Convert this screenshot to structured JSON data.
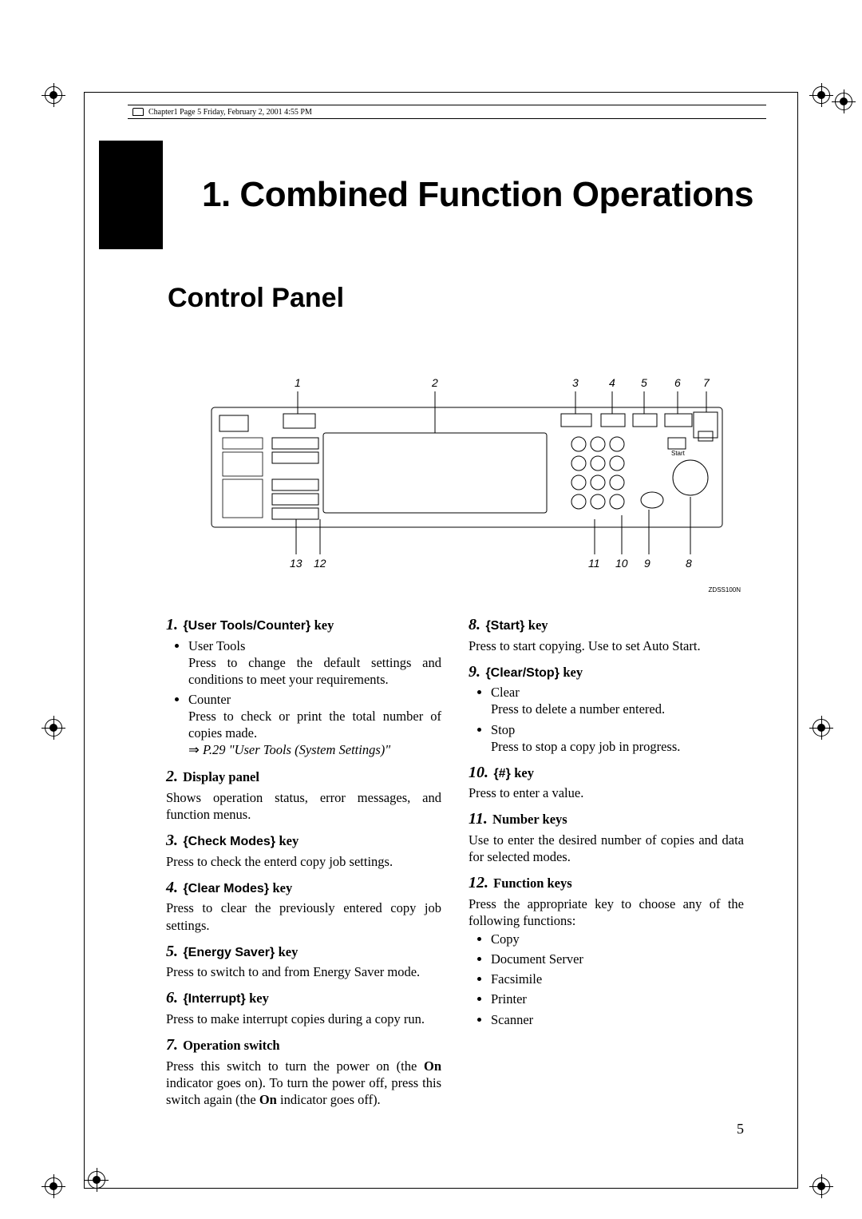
{
  "meta": {
    "header_line": "Chapter1  Page 5  Friday, February 2, 2001  4:55 PM"
  },
  "chapter": {
    "title": "1. Combined Function Operations"
  },
  "section": {
    "title": "Control Panel"
  },
  "diagram": {
    "top_labels": [
      "1",
      "2",
      "3",
      "4",
      "5",
      "6",
      "7"
    ],
    "bottom_labels_left": [
      "13",
      "12"
    ],
    "bottom_labels_right": [
      "11",
      "10",
      "9",
      "8"
    ],
    "code": "ZDSS100N"
  },
  "items": [
    {
      "n": "1.",
      "key": "User Tools/Counter",
      "is_key": true,
      "sub": [
        {
          "label": "User Tools",
          "text": "Press to change the default settings and conditions to meet your requirements."
        },
        {
          "label": "Counter",
          "text": "Press to check or print the total number of copies made.",
          "ref": "⇒ P.29 \"User Tools (System Settings)\""
        }
      ]
    },
    {
      "n": "2.",
      "plain": "Display panel",
      "text": "Shows operation status, error messages, and function menus."
    },
    {
      "n": "3.",
      "key": "Check Modes",
      "is_key": true,
      "text": "Press to check the enterd copy job settings."
    },
    {
      "n": "4.",
      "key": "Clear Modes",
      "is_key": true,
      "text": "Press to clear the previously entered copy job settings."
    },
    {
      "n": "5.",
      "key": "Energy Saver",
      "is_key": true,
      "text": "Press to switch to and from Energy Saver mode."
    },
    {
      "n": "6.",
      "key": "Interrupt",
      "is_key": true,
      "text": "Press to make interrupt copies during a copy run."
    },
    {
      "n": "7.",
      "plain": "Operation switch",
      "text_html": "Press this switch to turn the power on (the <b>On</b> indicator goes on). To turn the power off, press this switch again (the <b>On</b> indicator goes off)."
    },
    {
      "n": "8.",
      "key": "Start",
      "is_key": true,
      "text": "Press to start copying. Use to set Auto Start."
    },
    {
      "n": "9.",
      "key": "Clear/Stop",
      "is_key": true,
      "sub": [
        {
          "label": "Clear",
          "text": "Press to delete a number entered."
        },
        {
          "label": "Stop",
          "text": "Press to stop a copy job in progress."
        }
      ]
    },
    {
      "n": "10.",
      "key": "#",
      "is_key": true,
      "text": "Press to enter a value."
    },
    {
      "n": "11.",
      "plain": "Number keys",
      "text": "Use to enter the desired number of copies and data for selected modes."
    },
    {
      "n": "12.",
      "plain": "Function keys",
      "text": "Press the appropriate key to choose any of the following functions:",
      "list": [
        "Copy",
        "Document Server",
        "Facsimile",
        "Printer",
        "Scanner"
      ]
    }
  ],
  "page_number": "5",
  "colors": {
    "text": "#000000",
    "bg": "#ffffff"
  }
}
